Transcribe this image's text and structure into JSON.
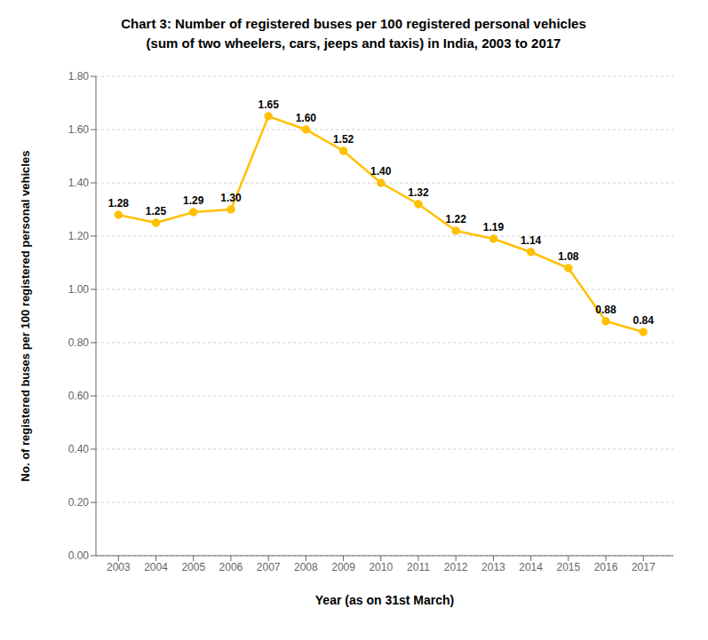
{
  "chart_data": {
    "type": "line",
    "title": "Chart 3: Number of registered buses per 100 registered personal vehicles",
    "subtitle": "(sum of two wheelers, cars, jeeps and taxis) in India, 2003 to 2017",
    "x_label": "Year (as on 31st March)",
    "y_label": "No. of registered buses per 100 registered personal vehicles",
    "x": [
      2003,
      2004,
      2005,
      2006,
      2007,
      2008,
      2009,
      2010,
      2011,
      2012,
      2013,
      2014,
      2015,
      2016,
      2017
    ],
    "values": [
      1.28,
      1.25,
      1.29,
      1.3,
      1.65,
      1.6,
      1.52,
      1.4,
      1.32,
      1.22,
      1.19,
      1.14,
      1.08,
      0.88,
      0.84
    ],
    "value_labels": [
      "1.28",
      "1.25",
      "1.29",
      "1.30",
      "1.65",
      "1.60",
      "1.52",
      "1.40",
      "1.32",
      "1.22",
      "1.19",
      "1.14",
      "1.08",
      "0.88",
      "0.84"
    ],
    "data_labels": true,
    "color": "#FFC000",
    "marker": "circle",
    "xlim": [
      2002.4,
      2017.8
    ],
    "xticks": [
      2003,
      2004,
      2005,
      2006,
      2007,
      2008,
      2009,
      2010,
      2011,
      2012,
      2013,
      2014,
      2015,
      2016,
      2017
    ],
    "ylim": [
      0.0,
      1.8
    ],
    "yticks": [
      {
        "value": 0.0,
        "label": "0.00"
      },
      {
        "value": 0.2,
        "label": "0.20"
      },
      {
        "value": 0.4,
        "label": "0.40"
      },
      {
        "value": 0.6,
        "label": "0.60"
      },
      {
        "value": 0.8,
        "label": "0.80"
      },
      {
        "value": 1.0,
        "label": "1.00"
      },
      {
        "value": 1.2,
        "label": "1.20"
      },
      {
        "value": 1.4,
        "label": "1.40"
      },
      {
        "value": 1.6,
        "label": "1.60"
      },
      {
        "value": 1.8,
        "label": "1.80"
      }
    ],
    "grid": true
  }
}
